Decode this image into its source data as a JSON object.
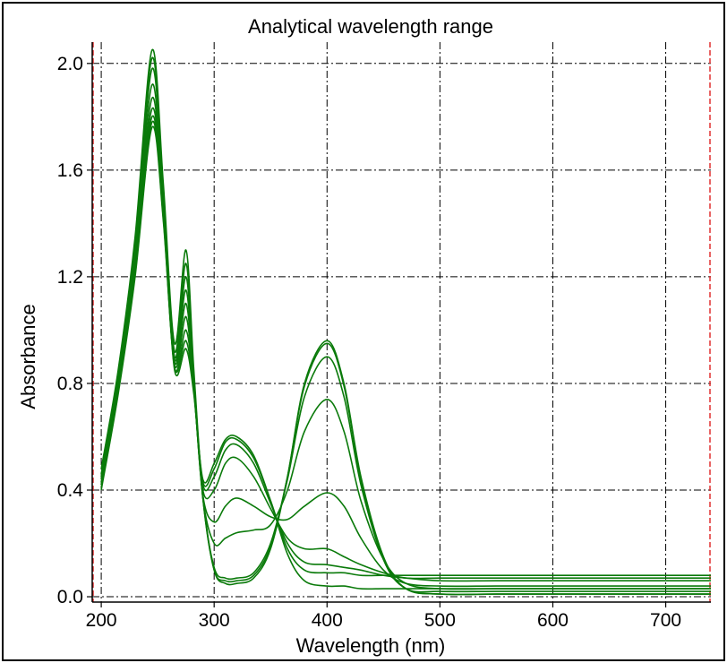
{
  "chart_data": {
    "type": "line",
    "title": "Analytical wavelength range",
    "xlabel": "Wavelength (nm)",
    "ylabel": "Absorbance",
    "xlim": [
      192,
      740
    ],
    "ylim": [
      -0.02,
      2.08
    ],
    "xticks": [
      200,
      300,
      400,
      500,
      600,
      700
    ],
    "xtick_labels": [
      "200",
      "300",
      "400",
      "500",
      "600",
      "700"
    ],
    "yticks": [
      0.0,
      0.4,
      0.8,
      1.2,
      1.6,
      2.0
    ],
    "ytick_labels": [
      "0.0",
      "0.4",
      "0.8",
      "1.2",
      "1.6",
      "2.0"
    ],
    "grid": true,
    "analytical_range": [
      192,
      740
    ],
    "range_marker_color": "#e03030",
    "line_color": "#0a7a0a",
    "series": [
      {
        "x": [
          200,
          215,
          230,
          245,
          255,
          265,
          275,
          282,
          290,
          300,
          310,
          320,
          335,
          350,
          365,
          380,
          400,
          415,
          430,
          450,
          470,
          500,
          550,
          600,
          650,
          740
        ],
        "y": [
          0.48,
          0.85,
          1.35,
          2.05,
          1.55,
          0.95,
          1.3,
          0.85,
          0.38,
          0.1,
          0.05,
          0.05,
          0.07,
          0.18,
          0.45,
          0.8,
          0.96,
          0.8,
          0.45,
          0.15,
          0.03,
          0.01,
          0.01,
          0.01,
          0.01,
          0.01
        ]
      },
      {
        "x": [
          200,
          215,
          230,
          245,
          255,
          265,
          275,
          282,
          290,
          300,
          310,
          320,
          335,
          350,
          365,
          380,
          400,
          415,
          430,
          450,
          470,
          500,
          550,
          600,
          650,
          740
        ],
        "y": [
          0.46,
          0.83,
          1.32,
          2.02,
          1.52,
          0.92,
          1.25,
          0.83,
          0.37,
          0.1,
          0.06,
          0.06,
          0.08,
          0.19,
          0.45,
          0.79,
          0.95,
          0.79,
          0.44,
          0.14,
          0.03,
          0.01,
          0.01,
          0.01,
          0.01,
          0.01
        ]
      },
      {
        "x": [
          200,
          215,
          230,
          245,
          255,
          265,
          275,
          282,
          290,
          300,
          310,
          320,
          335,
          350,
          365,
          380,
          400,
          415,
          430,
          450,
          470,
          500,
          550,
          600,
          650,
          740
        ],
        "y": [
          0.45,
          0.82,
          1.3,
          1.98,
          1.5,
          0.9,
          1.2,
          0.82,
          0.37,
          0.11,
          0.07,
          0.07,
          0.09,
          0.2,
          0.44,
          0.75,
          0.9,
          0.75,
          0.42,
          0.14,
          0.03,
          0.02,
          0.02,
          0.02,
          0.02,
          0.02
        ]
      },
      {
        "x": [
          200,
          215,
          230,
          245,
          255,
          265,
          275,
          282,
          290,
          300,
          310,
          320,
          335,
          350,
          365,
          380,
          400,
          415,
          430,
          450,
          470,
          500,
          550,
          600,
          650,
          740
        ],
        "y": [
          0.44,
          0.8,
          1.28,
          1.92,
          1.47,
          0.89,
          1.15,
          0.8,
          0.37,
          0.2,
          0.22,
          0.24,
          0.25,
          0.27,
          0.4,
          0.62,
          0.74,
          0.62,
          0.36,
          0.14,
          0.05,
          0.03,
          0.03,
          0.03,
          0.03,
          0.03
        ]
      },
      {
        "x": [
          200,
          215,
          230,
          245,
          255,
          265,
          275,
          282,
          290,
          300,
          310,
          320,
          335,
          350,
          365,
          380,
          400,
          415,
          430,
          450,
          470,
          500,
          550,
          600,
          650,
          740
        ],
        "y": [
          0.43,
          0.79,
          1.25,
          1.87,
          1.45,
          0.88,
          1.1,
          0.79,
          0.38,
          0.28,
          0.34,
          0.37,
          0.34,
          0.3,
          0.29,
          0.34,
          0.39,
          0.34,
          0.22,
          0.1,
          0.05,
          0.04,
          0.04,
          0.04,
          0.04,
          0.04
        ]
      },
      {
        "x": [
          200,
          215,
          230,
          245,
          255,
          265,
          275,
          282,
          290,
          300,
          310,
          320,
          335,
          350,
          365,
          380,
          400,
          415,
          430,
          450,
          470,
          500,
          550,
          600,
          650,
          740
        ],
        "y": [
          0.42,
          0.78,
          1.23,
          1.83,
          1.44,
          0.87,
          1.05,
          0.78,
          0.4,
          0.4,
          0.5,
          0.52,
          0.45,
          0.33,
          0.22,
          0.18,
          0.18,
          0.15,
          0.12,
          0.09,
          0.07,
          0.07,
          0.07,
          0.07,
          0.07,
          0.07
        ]
      },
      {
        "x": [
          200,
          215,
          230,
          245,
          255,
          265,
          275,
          282,
          290,
          300,
          310,
          320,
          335,
          350,
          365,
          380,
          400,
          415,
          430,
          450,
          470,
          500,
          550,
          600,
          650,
          740
        ],
        "y": [
          0.42,
          0.78,
          1.22,
          1.8,
          1.43,
          0.86,
          1.0,
          0.78,
          0.42,
          0.45,
          0.55,
          0.57,
          0.5,
          0.35,
          0.2,
          0.13,
          0.12,
          0.11,
          0.1,
          0.08,
          0.07,
          0.06,
          0.06,
          0.06,
          0.06,
          0.06
        ]
      },
      {
        "x": [
          200,
          215,
          230,
          245,
          255,
          265,
          275,
          282,
          290,
          300,
          310,
          320,
          335,
          350,
          365,
          380,
          400,
          415,
          430,
          450,
          470,
          500,
          550,
          600,
          650,
          740
        ],
        "y": [
          0.41,
          0.77,
          1.21,
          1.78,
          1.42,
          0.86,
          0.96,
          0.77,
          0.43,
          0.48,
          0.58,
          0.59,
          0.52,
          0.36,
          0.18,
          0.1,
          0.09,
          0.09,
          0.08,
          0.08,
          0.08,
          0.08,
          0.08,
          0.08,
          0.08,
          0.08
        ]
      },
      {
        "x": [
          200,
          215,
          230,
          245,
          255,
          265,
          275,
          282,
          290,
          300,
          310,
          320,
          335,
          350,
          365,
          380,
          400,
          415,
          430,
          450,
          470,
          500,
          550,
          600,
          650,
          740
        ],
        "y": [
          0.4,
          0.76,
          1.2,
          1.76,
          1.41,
          0.85,
          0.93,
          0.76,
          0.44,
          0.5,
          0.59,
          0.6,
          0.53,
          0.36,
          0.16,
          0.06,
          0.04,
          0.04,
          0.03,
          0.03,
          0.03,
          0.03,
          0.03,
          0.03,
          0.03,
          0.03
        ]
      }
    ]
  }
}
